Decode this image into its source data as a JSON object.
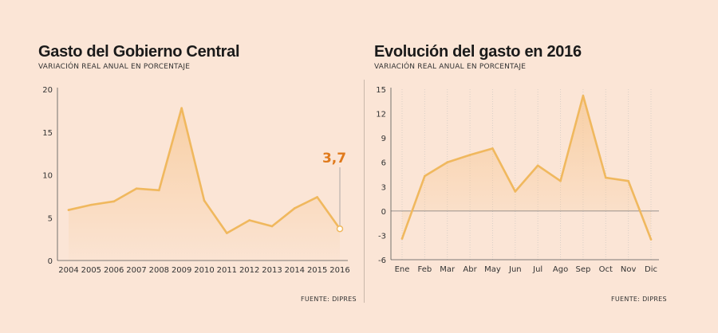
{
  "colors": {
    "background": "#fbe5d6",
    "line": "#f0b85e",
    "area": "#f7c894",
    "highlight": "#e07a1c",
    "grid": "#d9cfc7",
    "zero_line": "#777777",
    "text": "#1a1a1a"
  },
  "left": {
    "title": "Gasto del Gobierno Central",
    "subtitle": "VARIACIÓN REAL ANUAL EN PORCENTAJE",
    "source": "FUENTE: DIPRES"
  },
  "right": {
    "title": "Evolución del gasto en 2016",
    "subtitle": "VARIACIÓN REAL ANUAL EN PORCENTAJE",
    "source": "FUENTE: DIPRES"
  },
  "chart_data": [
    {
      "type": "area",
      "title": "Gasto del Gobierno Central",
      "subtitle": "VARIACIÓN REAL ANUAL EN PORCENTAJE",
      "categories": [
        "2004",
        "2005",
        "2006",
        "2007",
        "2008",
        "2009",
        "2010",
        "2011",
        "2012",
        "2013",
        "2014",
        "2015",
        "2016"
      ],
      "values": [
        5.9,
        6.5,
        6.9,
        8.4,
        8.2,
        17.8,
        7.0,
        3.2,
        4.7,
        4.0,
        6.1,
        7.4,
        3.7
      ],
      "yticks": [
        "0",
        "5",
        "10",
        "15",
        "20"
      ],
      "ylim": [
        0,
        20
      ],
      "grid": false,
      "annotation": {
        "label": "3,7",
        "category": "2016",
        "value": 3.7
      }
    },
    {
      "type": "area",
      "title": "Evolución del gasto en 2016",
      "subtitle": "VARIACIÓN REAL ANUAL EN PORCENTAJE",
      "categories": [
        "Ene",
        "Feb",
        "Mar",
        "Abr",
        "May",
        "Jun",
        "Jul",
        "Ago",
        "Sep",
        "Oct",
        "Nov",
        "Dic"
      ],
      "values": [
        -3.4,
        4.3,
        6.0,
        6.9,
        7.7,
        2.4,
        5.6,
        3.7,
        14.2,
        4.1,
        3.7,
        -3.5
      ],
      "yticks": [
        "-6",
        "-3",
        "0",
        "3",
        "6",
        "9",
        "12",
        "15"
      ],
      "ylim": [
        -6,
        15
      ],
      "grid": true,
      "zero_line": true
    }
  ]
}
